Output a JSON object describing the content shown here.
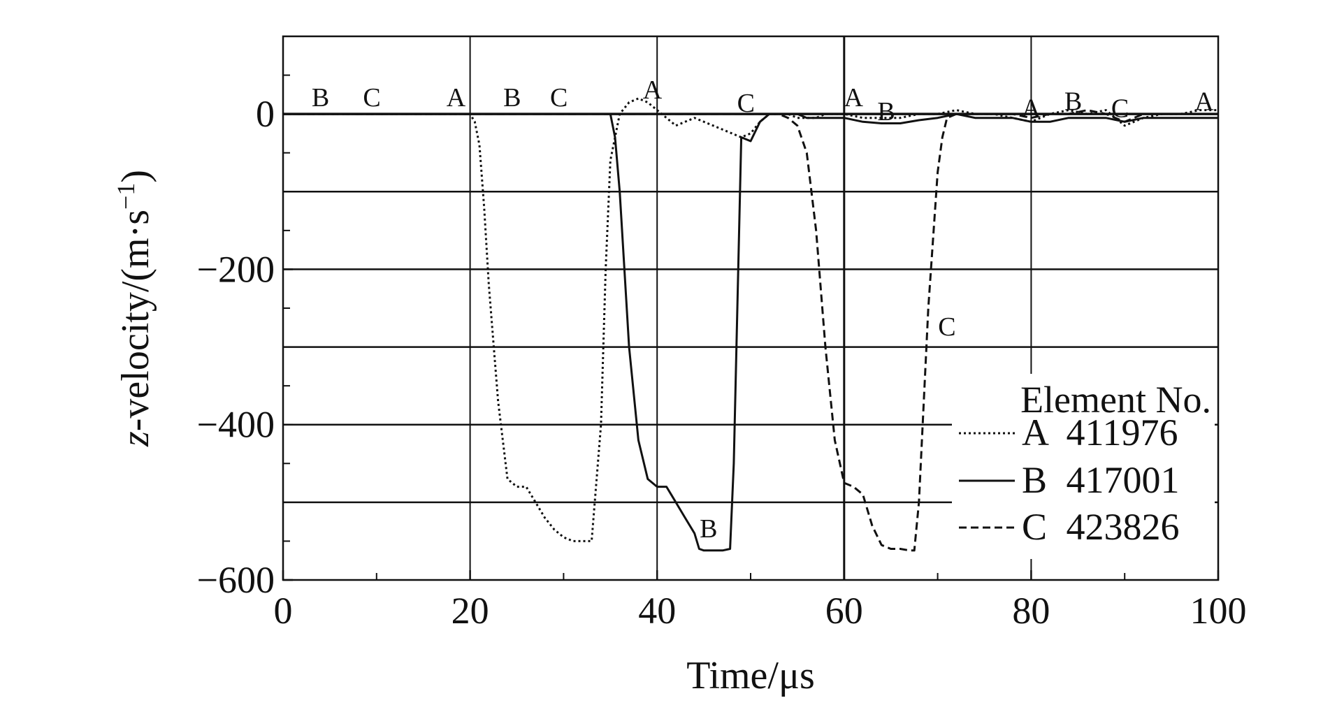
{
  "chart_data": {
    "type": "line",
    "title": "",
    "xlabel": "Time/μs",
    "ylabel_parts": {
      "symbol": "z",
      "rest": "-velocity/(m·s",
      "sup": "−1",
      "close": ")"
    },
    "xlim": [
      0,
      100
    ],
    "ylim": [
      -600,
      100
    ],
    "xticks": [
      0,
      20,
      40,
      60,
      80,
      100
    ],
    "xtick_labels": [
      "0",
      "20",
      "40",
      "60",
      "80",
      "100"
    ],
    "yticks": [
      0,
      -200,
      -400,
      -600
    ],
    "ytick_labels": [
      "0",
      "−200",
      "−400",
      "−600"
    ],
    "grid": {
      "horizontal_at": [
        0,
        -100,
        -200,
        -300,
        -400,
        -500
      ],
      "vertical_at": [
        20,
        40,
        60,
        80
      ]
    },
    "legend": {
      "title": "Element No.",
      "placement": "bottom-right",
      "entries": [
        {
          "letter": "A",
          "number": "411976",
          "style": "dotted"
        },
        {
          "letter": "B",
          "number": "417001",
          "style": "solid"
        },
        {
          "letter": "C",
          "number": "423826",
          "style": "dashed"
        }
      ]
    },
    "series": [
      {
        "name": "A 411976",
        "style": "dotted",
        "x": [
          0,
          20,
          20.5,
          21,
          21.5,
          22,
          23,
          24,
          25,
          26,
          27,
          28,
          29,
          30,
          31,
          32,
          33,
          34,
          34.5,
          35,
          36,
          37,
          38,
          39,
          40,
          41,
          42,
          43,
          44,
          45,
          46,
          47,
          48,
          49,
          50,
          51,
          52,
          53,
          54,
          55,
          56,
          57,
          58,
          59,
          60,
          62,
          64,
          66,
          68,
          70,
          72,
          74,
          76,
          78,
          80,
          82,
          84,
          86,
          88,
          90,
          92,
          94,
          96,
          98,
          100
        ],
        "y": [
          0,
          0,
          -10,
          -40,
          -120,
          -220,
          -370,
          -470,
          -480,
          -480,
          -500,
          -520,
          -535,
          -545,
          -550,
          -550,
          -550,
          -400,
          -200,
          -60,
          0,
          15,
          20,
          15,
          5,
          -5,
          -15,
          -10,
          -5,
          -10,
          -15,
          -20,
          -25,
          -30,
          -25,
          -10,
          0,
          0,
          0,
          -5,
          -5,
          -5,
          0,
          0,
          0,
          -5,
          -5,
          -5,
          0,
          0,
          5,
          0,
          0,
          -5,
          -10,
          0,
          5,
          0,
          5,
          -15,
          -5,
          0,
          0,
          5,
          5
        ]
      },
      {
        "name": "B 417001",
        "style": "solid",
        "x": [
          0,
          33,
          35,
          35.5,
          36,
          36.5,
          37,
          38,
          39,
          40,
          41,
          41.5,
          42,
          43,
          44,
          44.5,
          45,
          46,
          47,
          47.8,
          48.2,
          49,
          50,
          51,
          52,
          53,
          54,
          55,
          56,
          58,
          60,
          62,
          64,
          66,
          68,
          70,
          72,
          74,
          76,
          78,
          80,
          82,
          84,
          86,
          88,
          90,
          92,
          94,
          96,
          98,
          100
        ],
        "y": [
          0,
          0,
          0,
          -30,
          -100,
          -200,
          -300,
          -420,
          -470,
          -480,
          -480,
          -490,
          -500,
          -520,
          -540,
          -560,
          -562,
          -562,
          -562,
          -560,
          -450,
          -30,
          -35,
          -10,
          0,
          0,
          0,
          0,
          -5,
          -5,
          -5,
          -10,
          -12,
          -12,
          -8,
          -5,
          0,
          -5,
          -5,
          -5,
          -10,
          -10,
          -5,
          -5,
          -5,
          -10,
          -5,
          -5,
          -5,
          -5,
          -5
        ]
      },
      {
        "name": "C 423826",
        "style": "dashed",
        "x": [
          0,
          52,
          53,
          54,
          55,
          56,
          57,
          58,
          59,
          60,
          61,
          62,
          63,
          64,
          65,
          66,
          67,
          67.5,
          68,
          69,
          70,
          70.5,
          71,
          72,
          74,
          76,
          78,
          80,
          82,
          84,
          86,
          88,
          90,
          92,
          94,
          96,
          98,
          100
        ],
        "y": [
          0,
          0,
          0,
          -5,
          -15,
          -50,
          -150,
          -300,
          -420,
          -475,
          -480,
          -490,
          -530,
          -555,
          -560,
          -560,
          -562,
          -562,
          -500,
          -250,
          -75,
          -30,
          -5,
          0,
          0,
          0,
          0,
          -5,
          0,
          0,
          5,
          0,
          -10,
          0,
          0,
          0,
          0,
          0
        ]
      }
    ],
    "annotations": [
      {
        "text": "B",
        "x": 4,
        "y": 10
      },
      {
        "text": "C",
        "x": 9.5,
        "y": 10
      },
      {
        "text": "A",
        "x": 18.5,
        "y": 10
      },
      {
        "text": "B",
        "x": 24.5,
        "y": 10
      },
      {
        "text": "C",
        "x": 29.5,
        "y": 10
      },
      {
        "text": "A",
        "x": 39.5,
        "y": 20
      },
      {
        "text": "B",
        "x": 45.5,
        "y": -545
      },
      {
        "text": "C",
        "x": 49.5,
        "y": 3
      },
      {
        "text": "A",
        "x": 61,
        "y": 10
      },
      {
        "text": "B",
        "x": 64.5,
        "y": -8
      },
      {
        "text": "C",
        "x": 71,
        "y": -285
      },
      {
        "text": "A",
        "x": 80,
        "y": -4
      },
      {
        "text": "B",
        "x": 84.5,
        "y": 5
      },
      {
        "text": "C",
        "x": 89.5,
        "y": -4
      },
      {
        "text": "A",
        "x": 98.5,
        "y": 5
      }
    ]
  }
}
